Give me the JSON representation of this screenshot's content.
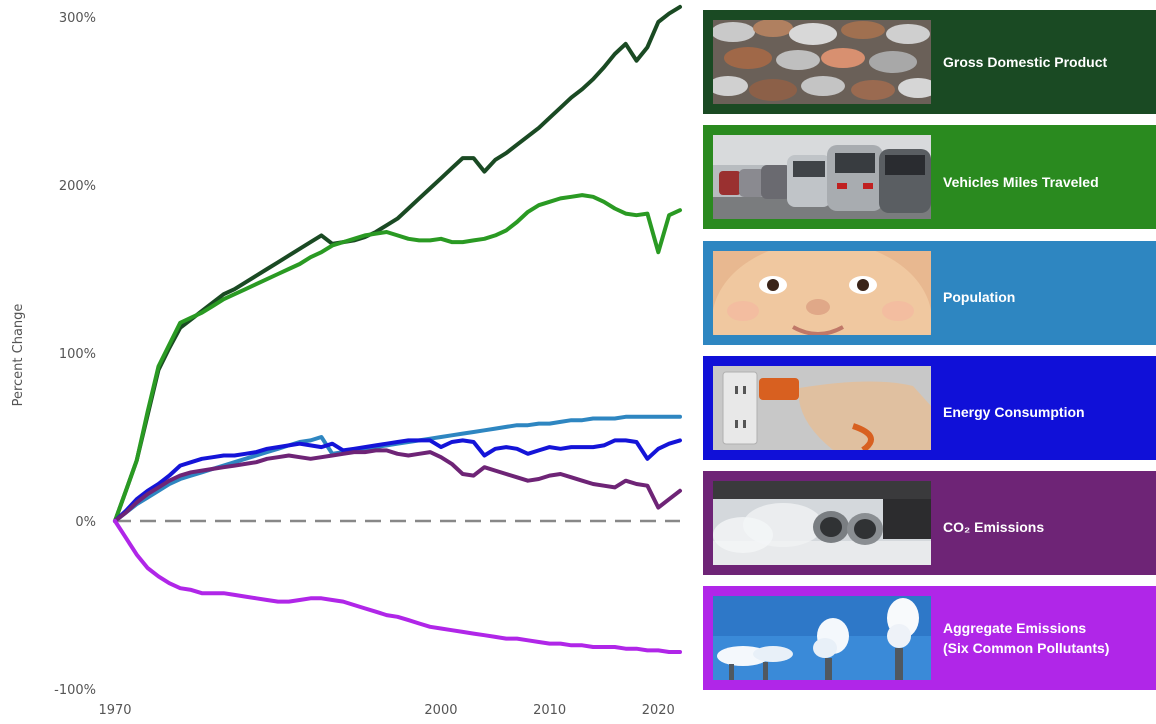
{
  "chart_data": {
    "type": "line",
    "title": "",
    "xlabel": "",
    "ylabel": "Percent Change",
    "xlim": [
      1970,
      2022
    ],
    "ylim": [
      -100,
      300
    ],
    "x_ticks": [
      1970,
      2000,
      2010,
      2020
    ],
    "y_ticks": [
      -100,
      0,
      100,
      200,
      300
    ],
    "y_tick_labels": [
      "-100%",
      "0%",
      "100%",
      "200%",
      "300%"
    ],
    "x": [
      1970,
      1971,
      1972,
      1973,
      1974,
      1975,
      1976,
      1977,
      1978,
      1979,
      1980,
      1981,
      1982,
      1983,
      1984,
      1985,
      1986,
      1987,
      1988,
      1989,
      1990,
      1991,
      1992,
      1993,
      1994,
      1995,
      1996,
      1997,
      1998,
      1999,
      2000,
      2001,
      2002,
      2003,
      2004,
      2005,
      2006,
      2007,
      2008,
      2009,
      2010,
      2011,
      2012,
      2013,
      2014,
      2015,
      2016,
      2017,
      2018,
      2019,
      2020,
      2021,
      2022
    ],
    "reference_line": {
      "y": 0,
      "style": "dashed",
      "color": "#888888"
    },
    "series": [
      {
        "name": "Gross Domestic Product",
        "color": "#1a4a23",
        "values": [
          0,
          18,
          36,
          63,
          90,
          103,
          115,
          120,
          125,
          130,
          135,
          138,
          142,
          146,
          150,
          154,
          158,
          162,
          166,
          170,
          165,
          166,
          167,
          169,
          172,
          176,
          180,
          186,
          192,
          198,
          204,
          210,
          216,
          216,
          208,
          215,
          219,
          224,
          229,
          234,
          240,
          246,
          252,
          257,
          263,
          270,
          278,
          284,
          274,
          282,
          297,
          302,
          306
        ]
      },
      {
        "name": "Vehicles Miles Traveled",
        "color": "#2a9a23",
        "values": [
          0,
          18,
          36,
          65,
          92,
          105,
          118,
          121,
          124,
          128,
          132,
          135,
          138,
          141,
          144,
          147,
          150,
          153,
          157,
          160,
          164,
          166,
          168,
          170,
          171,
          172,
          170,
          168,
          167,
          167,
          168,
          166,
          166,
          167,
          168,
          170,
          173,
          178,
          184,
          188,
          190,
          192,
          193,
          194,
          193,
          190,
          186,
          183,
          182,
          183,
          160,
          182,
          185
        ]
      },
      {
        "name": "Population",
        "color": "#2e86c1",
        "values": [
          0,
          5,
          10,
          14,
          18,
          22,
          25,
          27,
          29,
          31,
          33,
          35,
          37,
          39,
          41,
          43,
          45,
          47,
          48,
          50,
          40,
          41,
          42,
          43,
          44,
          45,
          46,
          47,
          48,
          49,
          50,
          51,
          52,
          53,
          54,
          55,
          56,
          57,
          57,
          58,
          58,
          59,
          60,
          60,
          61,
          61,
          61,
          62,
          62,
          62,
          62,
          62,
          62
        ]
      },
      {
        "name": "Energy Consumption",
        "color": "#1414d8",
        "values": [
          0,
          6,
          13,
          18,
          22,
          27,
          33,
          35,
          37,
          38,
          39,
          39,
          40,
          41,
          43,
          44,
          45,
          46,
          45,
          44,
          46,
          42,
          43,
          44,
          45,
          46,
          47,
          48,
          48,
          48,
          44,
          47,
          48,
          47,
          39,
          43,
          44,
          43,
          40,
          42,
          44,
          43,
          44,
          44,
          44,
          45,
          48,
          48,
          47,
          37,
          43,
          46,
          48
        ]
      },
      {
        "name": "CO₂ Emissions",
        "color": "#6e2476",
        "values": [
          0,
          5,
          11,
          16,
          20,
          24,
          27,
          29,
          30,
          31,
          32,
          33,
          34,
          35,
          37,
          38,
          39,
          38,
          37,
          38,
          39,
          40,
          41,
          41,
          42,
          42,
          40,
          39,
          40,
          41,
          38,
          34,
          28,
          27,
          32,
          30,
          28,
          26,
          24,
          25,
          27,
          28,
          26,
          24,
          22,
          21,
          20,
          24,
          22,
          21,
          8,
          13,
          18
        ]
      },
      {
        "name": "Aggregate Emissions (Six Common Pollutants)",
        "color": "#b026e8",
        "values": [
          0,
          -10,
          -20,
          -28,
          -33,
          -37,
          -40,
          -41,
          -43,
          -43,
          -43,
          -44,
          -45,
          -46,
          -47,
          -48,
          -48,
          -47,
          -46,
          -46,
          -47,
          -48,
          -50,
          -52,
          -54,
          -56,
          -57,
          -59,
          -61,
          -63,
          -64,
          -65,
          -66,
          -67,
          -68,
          -69,
          -70,
          -70,
          -71,
          -72,
          -73,
          -73,
          -74,
          -74,
          -75,
          -75,
          -75,
          -76,
          -76,
          -77,
          -77,
          -78,
          -78
        ]
      }
    ]
  },
  "legend": [
    {
      "label": "Gross Domestic Product",
      "color": "#1a4a23",
      "photo": "coins-photo"
    },
    {
      "label": "Vehicles Miles Traveled",
      "color": "#2a8a1f",
      "photo": "traffic-photo"
    },
    {
      "label": "Population",
      "color": "#2e86c1",
      "photo": "baby-photo"
    },
    {
      "label": "Energy Consumption",
      "color": "#1010d8",
      "photo": "power-plug-photo"
    },
    {
      "label": "CO₂ Emissions",
      "color": "#6e2476",
      "photo": "exhaust-pipe-photo"
    },
    {
      "label": "Aggregate Emissions",
      "label2": "(Six Common Pollutants)",
      "color": "#b026e8",
      "photo": "smokestacks-photo"
    }
  ]
}
